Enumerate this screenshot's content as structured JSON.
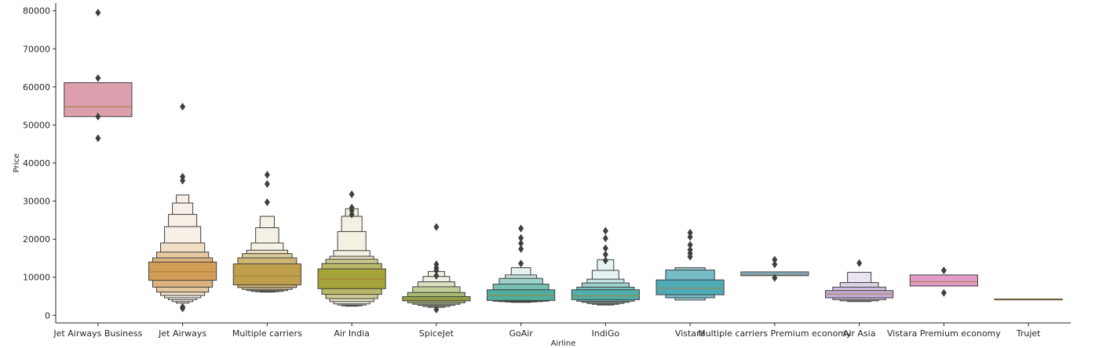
{
  "chart_data": {
    "type": "boxen",
    "title": "",
    "xlabel": "Airline",
    "ylabel": "Price",
    "ylim": [
      -2000,
      82000
    ],
    "yticks": [
      0,
      10000,
      20000,
      30000,
      40000,
      50000,
      60000,
      70000,
      80000
    ],
    "grid": false,
    "categories": [
      "Jet Airways Business",
      "Jet Airways",
      "Multiple carriers",
      "Air India",
      "SpiceJet",
      "GoAir",
      "IndiGo",
      "Vistara",
      "Multiple carriers Premium economy",
      "Air Asia",
      "Vistara Premium economy",
      "Trujet"
    ],
    "colors": [
      "#dd9fae",
      "#d29e57",
      "#bf9f4b",
      "#a6a33b",
      "#8fa84a",
      "#4fae9e",
      "#4faeaa",
      "#4fabb8",
      "#7ab3d6",
      "#c2acd6",
      "#e09cc6",
      "#e09cbf"
    ],
    "series": [
      {
        "median": 54800,
        "levels": [
          [
            52200,
            61100
          ]
        ],
        "outliers": [
          79500,
          62300,
          52200,
          46500
        ]
      },
      {
        "median": 11400,
        "levels": [
          [
            9200,
            14000
          ],
          [
            7400,
            15100
          ],
          [
            6100,
            16600
          ],
          [
            5200,
            19000
          ],
          [
            4600,
            23300
          ],
          [
            4100,
            26500
          ],
          [
            3600,
            29500
          ],
          [
            3200,
            31600
          ]
        ],
        "outliers": [
          54800,
          36400,
          35400,
          2200,
          1800
        ]
      },
      {
        "median": 10300,
        "levels": [
          [
            8000,
            13500
          ],
          [
            7300,
            15100
          ],
          [
            6800,
            16200
          ],
          [
            6500,
            17100
          ],
          [
            6300,
            19000
          ],
          [
            6200,
            23000
          ],
          [
            6100,
            26000
          ]
        ],
        "outliers": [
          36900,
          34500,
          29700
        ]
      },
      {
        "median": 9500,
        "levels": [
          [
            7000,
            12200
          ],
          [
            5500,
            13600
          ],
          [
            4400,
            14700
          ],
          [
            3600,
            15500
          ],
          [
            3000,
            17000
          ],
          [
            2700,
            22000
          ],
          [
            2500,
            26000
          ],
          [
            2400,
            28000
          ]
        ],
        "outliers": [
          31800,
          28300,
          27500,
          26500
        ]
      },
      {
        "median": 4200,
        "levels": [
          [
            3800,
            4900
          ],
          [
            3300,
            6000
          ],
          [
            2900,
            7500
          ],
          [
            2600,
            8800
          ],
          [
            2300,
            10200
          ],
          [
            2100,
            11500
          ]
        ],
        "outliers": [
          23200,
          13400,
          12500,
          11800,
          10400,
          1500
        ]
      },
      {
        "median": 5200,
        "levels": [
          [
            3900,
            6700
          ],
          [
            3700,
            8200
          ],
          [
            3600,
            9700
          ],
          [
            3500,
            10600
          ],
          [
            3400,
            12500
          ]
        ],
        "outliers": [
          22800,
          20300,
          18900,
          17400,
          13600
        ]
      },
      {
        "median": 5100,
        "levels": [
          [
            4100,
            6700
          ],
          [
            3700,
            7400
          ],
          [
            3400,
            8500
          ],
          [
            3100,
            9500
          ],
          [
            2900,
            11800
          ],
          [
            2700,
            14600
          ]
        ],
        "outliers": [
          22200,
          20200,
          17600,
          16000,
          14400
        ]
      },
      {
        "median": 7100,
        "levels": [
          [
            5400,
            9300
          ],
          [
            4600,
            11900
          ],
          [
            4000,
            12500
          ]
        ],
        "outliers": [
          21700,
          20600,
          18500,
          17200,
          16300,
          15400
        ]
      },
      {
        "median": 10800,
        "levels": [
          [
            10400,
            11400
          ]
        ],
        "outliers": [
          14600,
          13400,
          9800
        ]
      },
      {
        "median": 5600,
        "levels": [
          [
            4600,
            6500
          ],
          [
            4100,
            7400
          ],
          [
            3800,
            8600
          ],
          [
            3600,
            11300
          ]
        ],
        "outliers": [
          13700
        ]
      },
      {
        "median": 8800,
        "levels": [
          [
            7700,
            10600
          ]
        ],
        "outliers": [
          11800,
          5900
        ]
      },
      {
        "median": 4200,
        "levels": [
          [
            4050,
            4300
          ]
        ],
        "outliers": []
      }
    ]
  }
}
